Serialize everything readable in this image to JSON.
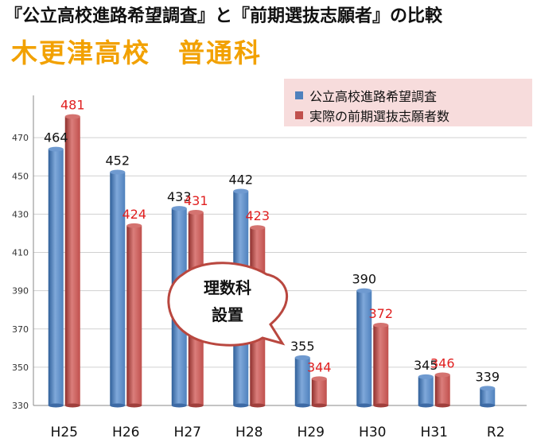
{
  "title": "『公立高校進路希望調査』と『前期選抜志願者』の比較",
  "subtitle": "木更津高校　普通科",
  "callout": {
    "line1": "理数科",
    "line2": "設置"
  },
  "colors": {
    "series1": "#4F81BD",
    "series2": "#C0504D",
    "label2": "#E02020",
    "subtitle": "#F2A100",
    "legend_bg": "#F7DCDC"
  },
  "chart_data": {
    "type": "bar",
    "categories": [
      "H25",
      "H26",
      "H27",
      "H28",
      "H29",
      "H30",
      "H31",
      "R2"
    ],
    "series": [
      {
        "name": "公立高校進路希望調査",
        "values": [
          464,
          452,
          433,
          442,
          355,
          390,
          345,
          339
        ]
      },
      {
        "name": "実際の前期選抜志願者数",
        "values": [
          481,
          424,
          431,
          423,
          344,
          372,
          346,
          null
        ]
      }
    ],
    "ylim": [
      330,
      480
    ],
    "yticks": [
      330,
      350,
      370,
      390,
      410,
      430,
      450,
      470
    ],
    "grid": true,
    "legend_position": "top-right"
  }
}
